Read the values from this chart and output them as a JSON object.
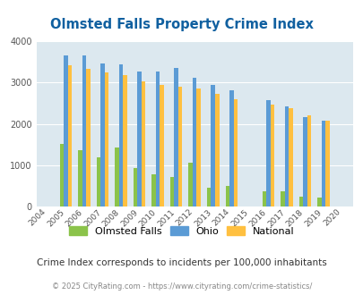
{
  "title": "Olmsted Falls Property Crime Index",
  "subtitle": "Crime Index corresponds to incidents per 100,000 inhabitants",
  "footer": "© 2025 CityRating.com - https://www.cityrating.com/crime-statistics/",
  "years": [
    2004,
    2005,
    2006,
    2007,
    2008,
    2009,
    2010,
    2011,
    2012,
    2013,
    2014,
    2015,
    2016,
    2017,
    2018,
    2019,
    2020
  ],
  "olmsted_falls": [
    0,
    1520,
    1370,
    1200,
    1430,
    940,
    790,
    710,
    1060,
    450,
    490,
    0,
    360,
    370,
    230,
    220,
    0
  ],
  "ohio": [
    0,
    3660,
    3660,
    3460,
    3440,
    3270,
    3260,
    3360,
    3110,
    2950,
    2820,
    0,
    2580,
    2430,
    2170,
    2070,
    0
  ],
  "national": [
    0,
    3410,
    3330,
    3250,
    3190,
    3040,
    2940,
    2900,
    2850,
    2720,
    2600,
    0,
    2460,
    2380,
    2200,
    2080,
    0
  ],
  "color_olmsted": "#8bc34a",
  "color_ohio": "#5b9bd5",
  "color_national": "#ffc040",
  "color_title": "#1060a0",
  "bg_color": "#dce8ef",
  "ylim": [
    0,
    4000
  ],
  "yticks": [
    0,
    1000,
    2000,
    3000,
    4000
  ]
}
